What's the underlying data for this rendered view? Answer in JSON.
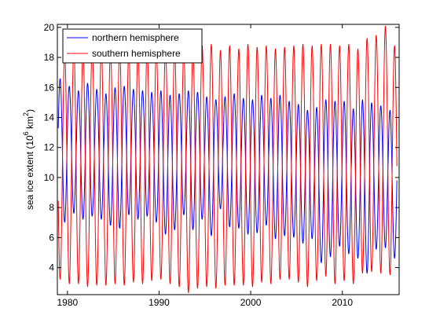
{
  "chart_data": {
    "type": "line",
    "title": "",
    "xlabel": "",
    "ylabel": "sea ice extent (10^6 km^2)",
    "ylabel_parts": {
      "pre": "sea ice extent (10",
      "exp": "6",
      "mid": " km",
      "exp2": "2",
      "post": ")"
    },
    "xlim": [
      1978.9,
      2016.2
    ],
    "ylim": [
      2.2,
      20.2
    ],
    "xticks": [
      1980,
      1990,
      2000,
      2010
    ],
    "xtick_labels": [
      "1980",
      "1990",
      "2000",
      "2010"
    ],
    "yticks": [
      4,
      6,
      8,
      10,
      12,
      14,
      16,
      18,
      20
    ],
    "ytick_labels": [
      "4",
      "6",
      "8",
      "10",
      "12",
      "14",
      "16",
      "18",
      "20"
    ],
    "grid": false,
    "legend_position": "top-left",
    "series": [
      {
        "name": "northern hemisphere",
        "color": "#0000ff",
        "cycle": "annual",
        "years": [
          1979,
          1980,
          1981,
          1982,
          1983,
          1984,
          1985,
          1986,
          1987,
          1988,
          1989,
          1990,
          1991,
          1992,
          1993,
          1994,
          1995,
          1996,
          1997,
          1998,
          1999,
          2000,
          2001,
          2002,
          2003,
          2004,
          2005,
          2006,
          2007,
          2008,
          2009,
          2010,
          2011,
          2012,
          2013,
          2014,
          2015
        ],
        "annual_max": [
          16.6,
          16.1,
          15.8,
          16.3,
          15.9,
          15.6,
          16.0,
          16.1,
          15.9,
          15.8,
          15.7,
          15.8,
          15.5,
          15.6,
          15.8,
          15.7,
          15.4,
          15.2,
          15.4,
          15.6,
          15.3,
          15.2,
          15.5,
          15.3,
          15.5,
          15.1,
          14.9,
          14.5,
          14.7,
          15.2,
          15.1,
          15.1,
          14.6,
          15.2,
          15.0,
          14.8,
          14.5
        ],
        "annual_min": [
          7.0,
          7.6,
          7.2,
          7.4,
          7.2,
          6.8,
          6.6,
          7.5,
          7.2,
          7.4,
          7.0,
          6.2,
          6.5,
          7.5,
          6.5,
          7.2,
          6.1,
          7.9,
          6.7,
          6.6,
          6.2,
          6.3,
          6.8,
          5.9,
          6.1,
          6.0,
          5.6,
          5.9,
          4.3,
          4.7,
          5.4,
          4.9,
          4.6,
          3.6,
          5.2,
          5.3,
          4.6
        ]
      },
      {
        "name": "southern hemisphere",
        "color": "#ff0000",
        "cycle": "annual",
        "years": [
          1979,
          1980,
          1981,
          1982,
          1983,
          1984,
          1985,
          1986,
          1987,
          1988,
          1989,
          1990,
          1991,
          1992,
          1993,
          1994,
          1995,
          1996,
          1997,
          1998,
          1999,
          2000,
          2001,
          2002,
          2003,
          2004,
          2005,
          2006,
          2007,
          2008,
          2009,
          2010,
          2011,
          2012,
          2013,
          2014,
          2015
        ],
        "annual_max": [
          18.4,
          18.7,
          18.6,
          18.8,
          18.7,
          18.6,
          18.7,
          18.5,
          18.6,
          18.7,
          18.6,
          18.7,
          18.6,
          18.5,
          18.6,
          18.8,
          18.9,
          18.5,
          18.8,
          18.6,
          18.9,
          18.7,
          18.8,
          18.6,
          18.7,
          18.8,
          18.9,
          18.8,
          18.9,
          18.9,
          18.8,
          18.9,
          18.6,
          19.3,
          19.5,
          20.1,
          18.8
        ],
        "annual_min": [
          3.2,
          2.9,
          2.9,
          2.7,
          2.8,
          2.8,
          2.9,
          2.8,
          3.0,
          2.9,
          3.1,
          3.2,
          2.9,
          2.7,
          2.3,
          2.6,
          2.7,
          2.6,
          2.8,
          2.8,
          2.8,
          2.7,
          3.0,
          2.9,
          3.2,
          3.2,
          3.0,
          2.7,
          3.1,
          3.4,
          2.9,
          3.1,
          2.9,
          3.6,
          3.7,
          3.6,
          3.5
        ]
      }
    ]
  }
}
